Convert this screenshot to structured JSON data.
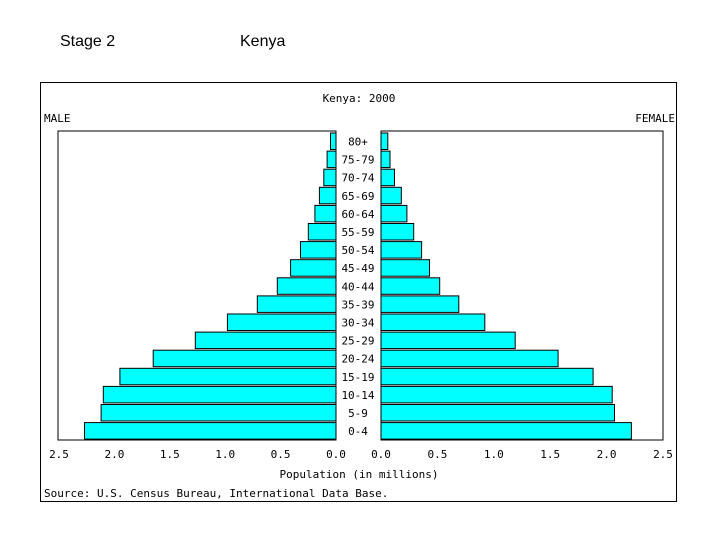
{
  "slide": {
    "stage": "Stage 2",
    "country": "Kenya"
  },
  "chart_data": {
    "type": "bar",
    "title": "Kenya: 2000",
    "left_label": "MALE",
    "right_label": "FEMALE",
    "xlabel": "Population (in millions)",
    "source": "Source: U.S. Census Bureau, International Data Base.",
    "xlim": [
      0,
      2.5
    ],
    "x_ticks": [
      "2.5",
      "2.0",
      "1.5",
      "1.0",
      "0.5",
      "0.0",
      "0.0",
      "0.5",
      "1.0",
      "1.5",
      "2.0",
      "2.5"
    ],
    "categories": [
      "80+",
      "75-79",
      "70-74",
      "65-69",
      "60-64",
      "55-59",
      "50-54",
      "45-49",
      "40-44",
      "35-39",
      "30-34",
      "25-29",
      "20-24",
      "15-19",
      "10-14",
      "5-9",
      "0-4"
    ],
    "series": [
      {
        "name": "MALE",
        "values": [
          0.05,
          0.08,
          0.11,
          0.15,
          0.19,
          0.25,
          0.32,
          0.41,
          0.53,
          0.71,
          0.98,
          1.27,
          1.65,
          1.95,
          2.1,
          2.12,
          2.27
        ]
      },
      {
        "name": "FEMALE",
        "values": [
          0.06,
          0.08,
          0.12,
          0.18,
          0.23,
          0.29,
          0.36,
          0.43,
          0.52,
          0.69,
          0.92,
          1.19,
          1.57,
          1.88,
          2.05,
          2.07,
          2.22
        ]
      }
    ],
    "bar_color": "#00ffff",
    "frame_color": "#000000"
  }
}
